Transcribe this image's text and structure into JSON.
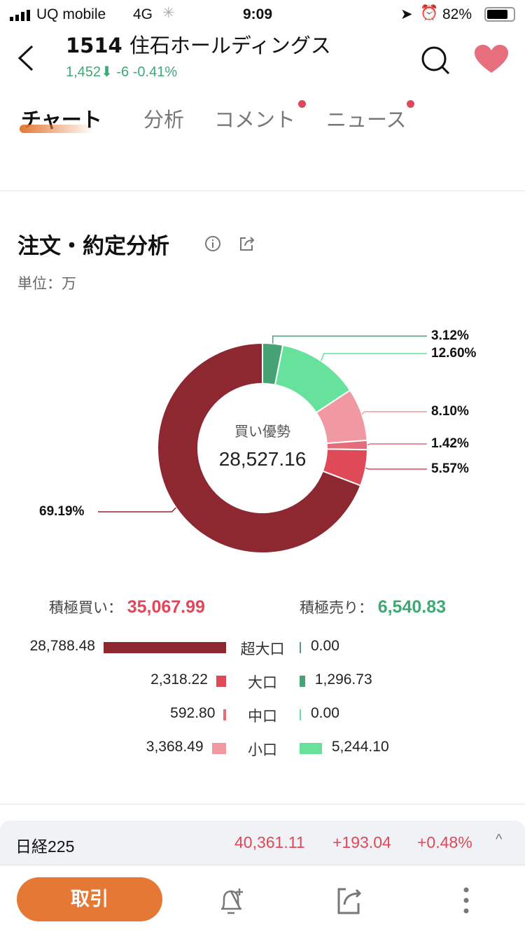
{
  "status_bar": {
    "carrier": "UQ mobile",
    "network": "4G",
    "time": "9:09",
    "battery": "82%"
  },
  "header": {
    "code": "1514",
    "name": "住石ホールディングス",
    "price": "1,452",
    "change": "-6",
    "change_pct": "-0.41%"
  },
  "tabs": [
    {
      "label": "チャート",
      "active": true
    },
    {
      "label": "分析"
    },
    {
      "label": "コメント",
      "dot": true
    },
    {
      "label": "ニュース",
      "dot": true
    }
  ],
  "section": {
    "title": "注文・約定分析",
    "unit": "単位：万"
  },
  "chart_data": {
    "type": "pie",
    "donut": true,
    "center_label": "買い優勢",
    "center_value": "28,527.16",
    "slices": [
      {
        "label": "3.12%",
        "value": 3.12,
        "color": "#47a275"
      },
      {
        "label": "12.60%",
        "value": 12.6,
        "color": "#67e29d"
      },
      {
        "label": "8.10%",
        "value": 8.1,
        "color": "#f099a3"
      },
      {
        "label": "1.42%",
        "value": 1.42,
        "color": "#e26e7c"
      },
      {
        "label": "5.57%",
        "value": 5.57,
        "color": "#df4a58"
      },
      {
        "label": "69.19%",
        "value": 69.19,
        "color": "#8e2830"
      }
    ]
  },
  "summary": {
    "buy_label": "積極買い：",
    "buy_value": "35,067.99",
    "sell_label": "積極売り：",
    "sell_value": "6,540.83"
  },
  "breakdown": [
    {
      "category": "超大口",
      "buy": "28,788.48",
      "buy_num": 28788.48,
      "sell": "0.00",
      "sell_num": 0,
      "buy_color": "#8e2830",
      "sell_color": "#47a275"
    },
    {
      "category": "大口",
      "buy": "2,318.22",
      "buy_num": 2318.22,
      "sell": "1,296.73",
      "sell_num": 1296.73,
      "buy_color": "#df4a58",
      "sell_color": "#47a275"
    },
    {
      "category": "中口",
      "buy": "592.80",
      "buy_num": 592.8,
      "sell": "0.00",
      "sell_num": 0,
      "buy_color": "#e26e7c",
      "sell_color": "#67e29d"
    },
    {
      "category": "小口",
      "buy": "3,368.49",
      "buy_num": 3368.49,
      "sell": "5,244.10",
      "sell_num": 5244.1,
      "buy_color": "#f099a3",
      "sell_color": "#67e29d"
    }
  ],
  "ticker": {
    "name": "日経225",
    "value": "40,361.11",
    "change": "+193.04",
    "change_pct": "+0.48%"
  },
  "bottom": {
    "trade_label": "取引"
  },
  "colors": {
    "accent": "#e47834",
    "up": "#e0485a",
    "down": "#3fa874"
  }
}
